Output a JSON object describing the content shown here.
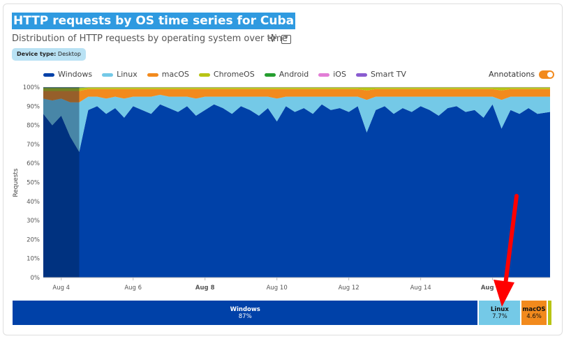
{
  "header": {
    "title": "HTTP requests by OS time series for Cuba",
    "subtitle": "Distribution of HTTP requests by operating system over time",
    "sparkle_icon": "sparkle-icon",
    "quote_icon": "quote-icon",
    "quote_glyph": "❞"
  },
  "filter": {
    "label": "Device type:",
    "value": "Desktop"
  },
  "annotations": {
    "label": "Annotations",
    "enabled": true
  },
  "colors": {
    "Windows": "#0041a8",
    "Linux": "#74c9e7",
    "macOS": "#f28a1d",
    "ChromeOS": "#b8c414",
    "Android": "#259e2f",
    "iOS": "#e27ed6",
    "Smart TV": "#8a5cd0",
    "highlight": "#003a7a",
    "highlight_title": "#2f9ae0",
    "arrow": "#ff0000"
  },
  "chart_data": {
    "type": "area",
    "stacked": true,
    "normalized": true,
    "ylabel": "Requests",
    "y_ticks": [
      "0%",
      "10%",
      "20%",
      "30%",
      "40%",
      "50%",
      "60%",
      "70%",
      "80%",
      "90%",
      "100%"
    ],
    "ylim": [
      0,
      100
    ],
    "x_ticks": [
      {
        "label": "Aug 4",
        "day": 4,
        "bold": false
      },
      {
        "label": "Aug 6",
        "day": 6,
        "bold": false
      },
      {
        "label": "Aug 8",
        "day": 8,
        "bold": true
      },
      {
        "label": "Aug 10",
        "day": 10,
        "bold": false
      },
      {
        "label": "Aug 12",
        "day": 12,
        "bold": false
      },
      {
        "label": "Aug 14",
        "day": 14,
        "bold": false
      },
      {
        "label": "Aug 16",
        "day": 16,
        "bold": true
      }
    ],
    "x_range_days": [
      3.5,
      17.6
    ],
    "highlight_range_days": [
      3.5,
      4.5
    ],
    "legend": [
      "Windows",
      "Linux",
      "macOS",
      "ChromeOS",
      "Android",
      "iOS",
      "Smart TV"
    ],
    "x_days": [
      3.5,
      3.75,
      4.0,
      4.25,
      4.5,
      4.75,
      5.0,
      5.25,
      5.5,
      5.75,
      6.0,
      6.25,
      6.5,
      6.75,
      7.0,
      7.25,
      7.5,
      7.75,
      8.0,
      8.25,
      8.5,
      8.75,
      9.0,
      9.25,
      9.5,
      9.75,
      10.0,
      10.25,
      10.5,
      10.75,
      11.0,
      11.25,
      11.5,
      11.75,
      12.0,
      12.25,
      12.5,
      12.75,
      13.0,
      13.25,
      13.5,
      13.75,
      14.0,
      14.25,
      14.5,
      14.75,
      15.0,
      15.25,
      15.5,
      15.75,
      16.0,
      16.25,
      16.5,
      16.75,
      17.0,
      17.25,
      17.6
    ],
    "series": [
      {
        "name": "Windows",
        "values": [
          86,
          80,
          85,
          74,
          66,
          88,
          90,
          86,
          89,
          84,
          90,
          88,
          86,
          91,
          89,
          87,
          90,
          85,
          88,
          91,
          89,
          86,
          90,
          88,
          85,
          89,
          82,
          90,
          87,
          89,
          86,
          91,
          88,
          89,
          87,
          90,
          76,
          88,
          90,
          86,
          89,
          87,
          90,
          88,
          85,
          89,
          90,
          87,
          88,
          84,
          91,
          78,
          88,
          86,
          89,
          86,
          87
        ]
      },
      {
        "name": "Linux",
        "values": [
          8,
          13,
          9,
          18,
          26,
          7,
          5,
          8,
          6,
          10,
          5,
          7,
          9,
          5,
          6,
          8,
          5,
          9,
          7,
          4,
          6,
          9,
          5,
          7,
          10,
          6,
          12,
          5,
          8,
          6,
          9,
          4,
          7,
          6,
          8,
          5,
          17,
          7,
          5,
          9,
          6,
          8,
          5,
          7,
          10,
          6,
          5,
          8,
          7,
          11,
          4,
          15,
          7,
          9,
          6,
          9,
          8
        ]
      },
      {
        "name": "macOS",
        "values": [
          4,
          5,
          4,
          6,
          6,
          4,
          4,
          5,
          4,
          5,
          4,
          4,
          4,
          3,
          4,
          4,
          4,
          5,
          4,
          4,
          4,
          4,
          4,
          4,
          4,
          4,
          5,
          4,
          4,
          4,
          4,
          4,
          4,
          4,
          4,
          4,
          5,
          4,
          4,
          4,
          4,
          4,
          4,
          4,
          4,
          4,
          4,
          4,
          4,
          4,
          4,
          5,
          4,
          4,
          4,
          4,
          4
        ]
      },
      {
        "name": "ChromeOS",
        "values": [
          1.5,
          1.5,
          1.5,
          1.5,
          1.5,
          0.8,
          0.8,
          0.8,
          0.8,
          0.8,
          0.8,
          0.8,
          0.8,
          0.8,
          0.8,
          0.8,
          0.8,
          0.8,
          0.8,
          0.8,
          0.8,
          0.8,
          0.8,
          0.8,
          0.8,
          0.8,
          0.8,
          0.8,
          0.8,
          0.8,
          0.8,
          0.8,
          0.8,
          0.8,
          0.8,
          0.8,
          1.5,
          0.8,
          0.8,
          0.8,
          0.8,
          0.8,
          0.8,
          0.8,
          0.8,
          0.8,
          0.8,
          0.8,
          0.8,
          0.8,
          0.8,
          1.5,
          0.8,
          0.8,
          0.8,
          0.8,
          0.8
        ]
      },
      {
        "name": "Android",
        "values": [
          0.3,
          0.3,
          0.3,
          0.3,
          0.3,
          0.1,
          0.1,
          0.1,
          0.1,
          0.1,
          0.1,
          0.1,
          0.1,
          0.1,
          0.1,
          0.1,
          0.1,
          0.1,
          0.1,
          0.1,
          0.1,
          0.1,
          0.1,
          0.1,
          0.1,
          0.1,
          0.1,
          0.1,
          0.1,
          0.1,
          0.1,
          0.1,
          0.1,
          0.1,
          0.1,
          0.1,
          0.1,
          0.1,
          0.1,
          0.1,
          0.1,
          0.1,
          0.1,
          0.1,
          0.1,
          0.1,
          0.1,
          0.1,
          0.1,
          0.1,
          0.1,
          0.1,
          0.1,
          0.1,
          0.1,
          0.1,
          0.1
        ]
      },
      {
        "name": "iOS",
        "values": [
          0.1,
          0.1,
          0.1,
          0.1,
          0.1,
          0.05,
          0.05,
          0.05,
          0.05,
          0.05,
          0.05,
          0.05,
          0.05,
          0.05,
          0.05,
          0.05,
          0.05,
          0.05,
          0.05,
          0.05,
          0.05,
          0.05,
          0.05,
          0.05,
          0.05,
          0.05,
          0.05,
          0.05,
          0.05,
          0.05,
          0.05,
          0.05,
          0.05,
          0.05,
          0.05,
          0.05,
          0.05,
          0.05,
          0.05,
          0.05,
          0.05,
          0.05,
          0.05,
          0.05,
          0.05,
          0.05,
          0.05,
          0.05,
          0.05,
          0.05,
          0.05,
          0.05,
          0.05,
          0.05,
          0.05,
          0.05,
          0.05
        ]
      },
      {
        "name": "Smart TV",
        "values": [
          0.1,
          0.1,
          0.1,
          0.1,
          0.1,
          0.05,
          0.05,
          0.05,
          0.05,
          0.05,
          0.05,
          0.05,
          0.05,
          0.05,
          0.05,
          0.05,
          0.05,
          0.05,
          0.05,
          0.05,
          0.05,
          0.05,
          0.05,
          0.05,
          0.05,
          0.05,
          0.05,
          0.05,
          0.05,
          0.05,
          0.05,
          0.05,
          0.05,
          0.05,
          0.05,
          0.05,
          0.05,
          0.05,
          0.05,
          0.05,
          0.05,
          0.05,
          0.05,
          0.05,
          0.05,
          0.05,
          0.05,
          0.05,
          0.05,
          0.05,
          0.05,
          0.05,
          0.05,
          0.05,
          0.05,
          0.05,
          0.05
        ]
      }
    ],
    "summary": [
      {
        "name": "Windows",
        "label": "87%",
        "value": 87
      },
      {
        "name": "Linux",
        "label": "7.7%",
        "value": 7.7
      },
      {
        "name": "macOS",
        "label": "4.6%",
        "value": 4.6
      },
      {
        "name": "ChromeOS",
        "label": "",
        "value": 0.7
      }
    ]
  }
}
